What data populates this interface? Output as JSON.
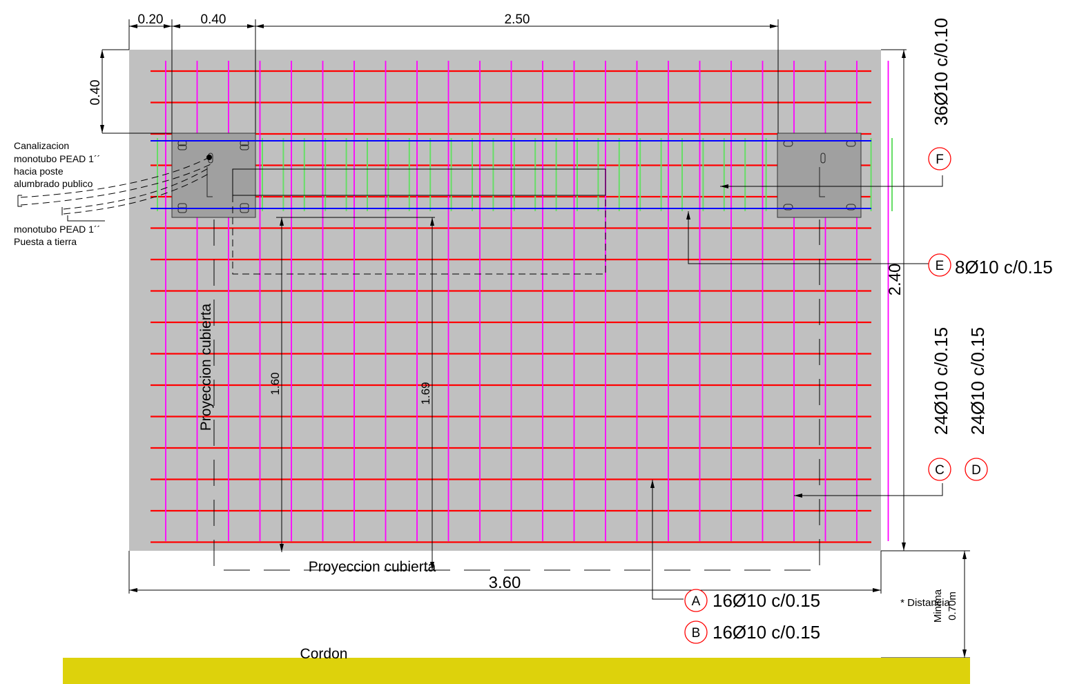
{
  "dimensions": {
    "top_left": "0.20",
    "top_mid": "0.40",
    "top_span": "2.50",
    "left_vert": "0.40",
    "width_total": "3.60",
    "height_total": "2.40",
    "inner_a": "1.60",
    "inner_b": "1.69"
  },
  "rebar": {
    "A": {
      "marker": "A",
      "spec": "16Ø10 c/0.15"
    },
    "B": {
      "marker": "B",
      "spec": "16Ø10 c/0.15"
    },
    "C": {
      "marker": "C",
      "spec": "24Ø10 c/0.15"
    },
    "D": {
      "marker": "D",
      "spec": "24Ø10 c/0.15"
    },
    "E": {
      "marker": "E",
      "spec": "8Ø10 c/0.15"
    },
    "F": {
      "marker": "F",
      "spec": "36Ø10 c/0.10"
    }
  },
  "notes": {
    "canalizacion": [
      "Canalizacion",
      "monotubo PEAD 1´´",
      "hacia poste",
      "alumbrado publico"
    ],
    "puesta_tierra": [
      " monotubo PEAD 1´´",
      "Puesta a tierra"
    ],
    "proyeccion_vert": "Proyeccion cubierta",
    "proyeccion_horiz": "Proyeccion cubierta",
    "cordon": "Cordon",
    "distancia": [
      "* Distancia",
      "Minima",
      "0.70m"
    ]
  },
  "colors": {
    "slab": "#c0c0c0",
    "rebar_horizontal": "#ff0000",
    "rebar_vertical": "#ff00ff",
    "stirrup": "#66dd66",
    "beam_bar": "#0000ff",
    "plate": "#a0a0a0",
    "marker": "#ff0000",
    "curb": "#ddd20c"
  }
}
